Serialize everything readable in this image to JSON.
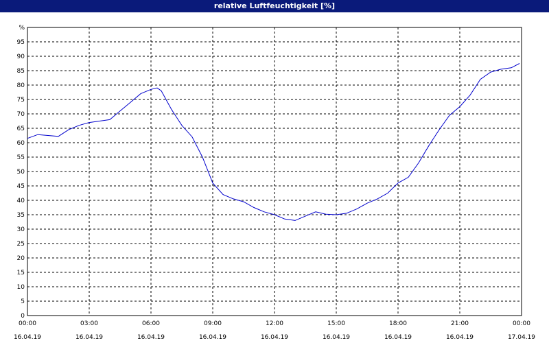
{
  "window": {
    "title": "relative Luftfeuchtigkeit [%]"
  },
  "chart_data": {
    "type": "line",
    "title": "relative Luftfeuchtigkeit [%]",
    "ylabel": "%",
    "ylim": [
      0,
      100
    ],
    "yticks": [
      0,
      5,
      10,
      15,
      20,
      25,
      30,
      35,
      40,
      45,
      50,
      55,
      60,
      65,
      70,
      75,
      80,
      85,
      90,
      95
    ],
    "xlim": [
      0,
      24
    ],
    "xticks": [
      {
        "hour": 0,
        "time": "00:00",
        "date": "16.04.19"
      },
      {
        "hour": 3,
        "time": "03:00",
        "date": "16.04.19"
      },
      {
        "hour": 6,
        "time": "06:00",
        "date": "16.04.19"
      },
      {
        "hour": 9,
        "time": "09:00",
        "date": "16.04.19"
      },
      {
        "hour": 12,
        "time": "12:00",
        "date": "16.04.19"
      },
      {
        "hour": 15,
        "time": "15:00",
        "date": "16.04.19"
      },
      {
        "hour": 18,
        "time": "18:00",
        "date": "16.04.19"
      },
      {
        "hour": 21,
        "time": "21:00",
        "date": "16.04.19"
      },
      {
        "hour": 24,
        "time": "00:00",
        "date": "17.04.19"
      }
    ],
    "grid": true,
    "line_color": "#0000cc",
    "series": [
      {
        "x": [
          0,
          0.5,
          1,
          1.5,
          2,
          2.5,
          3,
          3.5,
          4,
          4.5,
          5,
          5.5,
          6,
          6.3,
          6.5,
          7,
          7.5,
          8,
          8.5,
          9,
          9.5,
          10,
          10.5,
          11,
          11.5,
          12,
          12.5,
          13,
          13.5,
          14,
          14.5,
          15,
          15.5,
          16,
          16.5,
          17,
          17.5,
          18,
          18.5,
          19,
          19.5,
          20,
          20.5,
          21,
          21.5,
          22,
          22.5,
          23,
          23.5,
          23.9
        ],
        "y": [
          61.5,
          62.8,
          62.5,
          62.2,
          64.5,
          66,
          67,
          67.5,
          68,
          71,
          74,
          77,
          78.5,
          79,
          78,
          71.5,
          66,
          62,
          55,
          46,
          42,
          40.5,
          39.5,
          37.5,
          36,
          35,
          33.5,
          33,
          34.5,
          36,
          35.2,
          35,
          35.5,
          37,
          39,
          40.5,
          42.5,
          46,
          48,
          53,
          59,
          64.5,
          69.5,
          72.5,
          76.5,
          82,
          84.5,
          85.5,
          86,
          87.5
        ]
      }
    ]
  }
}
